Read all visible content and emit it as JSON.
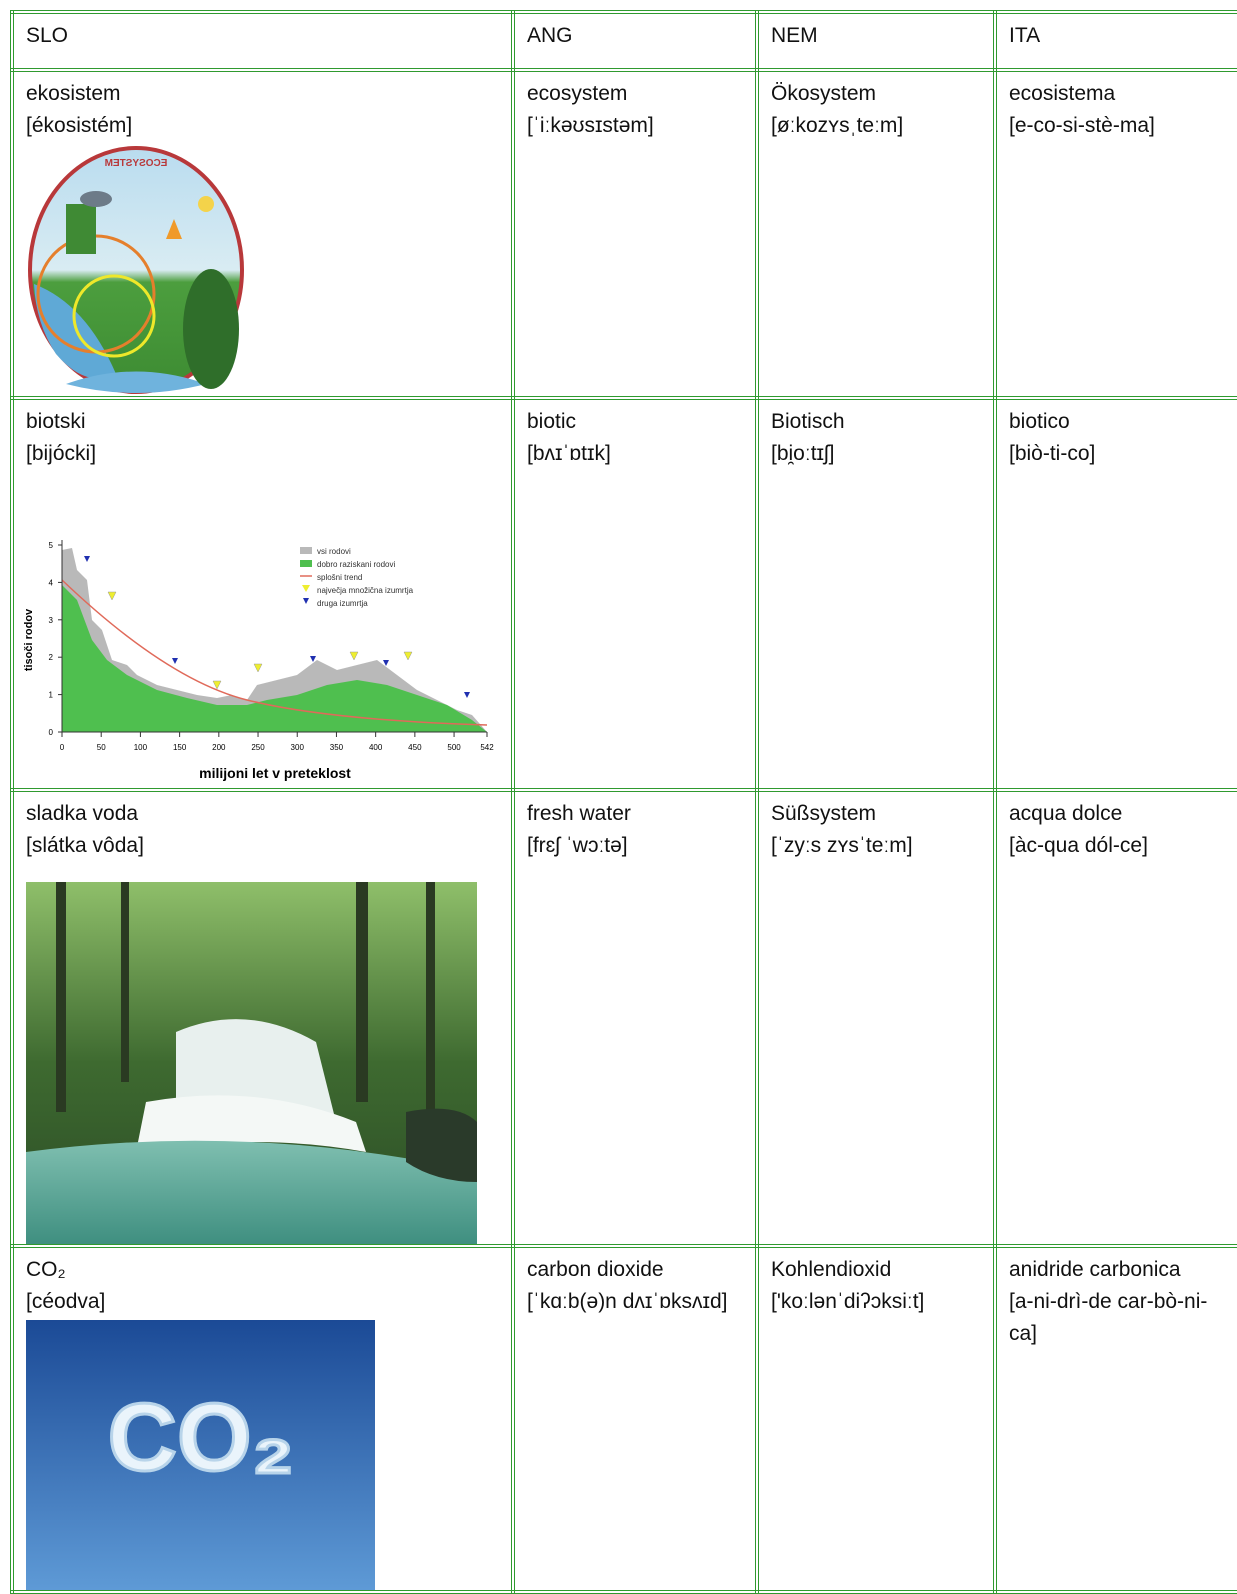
{
  "table": {
    "header": [
      "SLO",
      "ANG",
      "NEM",
      "ITA"
    ],
    "rows": [
      [
        [
          "ekosistem",
          "[ékosistém]"
        ],
        [
          "ecosystem",
          "[ˈiːkəʊsɪstəm]"
        ],
        [
          "Ökosystem",
          "[øːkozʏsˌteːm]"
        ],
        [
          "ecosistema",
          "[e-co-si-stè-ma]"
        ]
      ],
      [
        [
          "biotski",
          "[bijócki]"
        ],
        [
          "biotic",
          "[bʌɪˈɒtɪk]"
        ],
        [
          "Biotisch",
          "[bi̯oːtɪʃ]"
        ],
        [
          "biotico",
          "[biò-ti-co]"
        ]
      ],
      [
        [
          "sladka voda",
          "[slátka vôda]"
        ],
        [
          "fresh water",
          "[frɛʃ ˈwɔːtə]"
        ],
        [
          "Süßsystem",
          "[ˈzyːs zʏsˈteːm]"
        ],
        [
          "acqua dolce",
          "[àc-qua dól-ce]"
        ]
      ],
      [
        [
          "CO₂",
          "[céodva]"
        ],
        [
          "carbon dioxide",
          "[ˈkɑːb(ə)n dʌɪˈɒksʌɪd]"
        ],
        [
          "Kohlendioxid",
          "['koːlənˈdiʔɔksiːt]"
        ],
        [
          "anidride carbonica",
          "[a-ni-drì-de car-bò-ni-ca]"
        ]
      ]
    ]
  },
  "figures": {
    "ecosystem": {
      "title": "ECOSYSTEM"
    },
    "extinction_chart": {
      "y_label": "tisoči rodov",
      "x_label": "milijoni let v preteklost",
      "yticks": [
        0,
        1,
        2,
        3,
        4,
        5
      ],
      "xticks": [
        0,
        50,
        100,
        150,
        200,
        250,
        300,
        350,
        400,
        450,
        500,
        542
      ],
      "legend": [
        "vsi rodovi",
        "dobro raziskani rodovi",
        "splošni trend",
        "največja množična izumrtja",
        "druga izumrtja"
      ]
    },
    "co2": {
      "text": "CO₂"
    }
  }
}
